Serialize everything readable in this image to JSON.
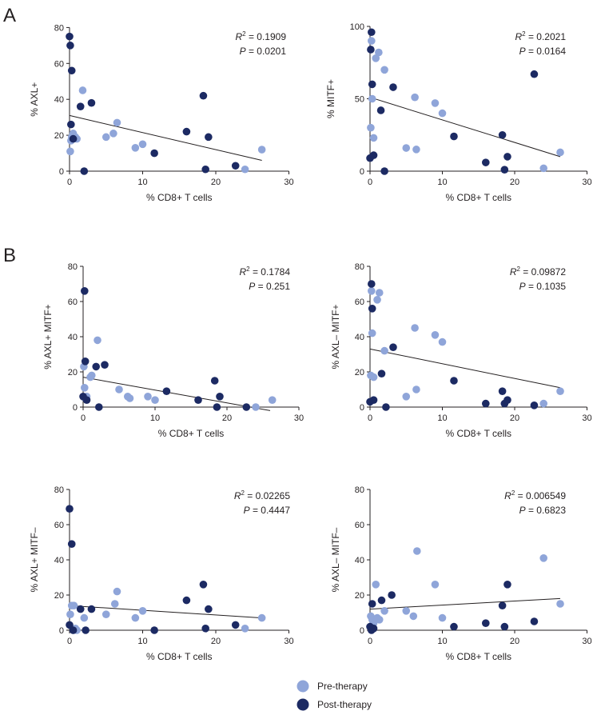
{
  "figure": {
    "panel_labels": [
      "A",
      "B"
    ],
    "colors": {
      "pre": "#8fa5d9",
      "post": "#1c2a63",
      "line": "#231f20"
    },
    "legend": [
      {
        "name": "Pre-therapy",
        "color": "#8fa5d9"
      },
      {
        "name": "Post-therapy",
        "color": "#1c2a63"
      }
    ]
  },
  "chart_data": [
    {
      "type": "scatter",
      "panel": "A",
      "xlabel": "% CD8+ T cells",
      "ylabel": "% AXL+",
      "xlim": [
        0,
        30
      ],
      "ylim": [
        0,
        80
      ],
      "xticks": [
        0,
        10,
        20,
        30
      ],
      "yticks": [
        0,
        20,
        40,
        60,
        80
      ],
      "r2_label": "R",
      "r2_sup": "2",
      "r2_value": " = 0.1909",
      "p_label": "P",
      "p_value": " = 0.0201",
      "fit": {
        "x": [
          0,
          26.3
        ],
        "y": [
          31,
          6
        ]
      },
      "series": [
        {
          "name": "Pre-therapy",
          "points": [
            [
              0.1,
              11
            ],
            [
              0.2,
              17
            ],
            [
              0.3,
              19
            ],
            [
              0.5,
              21
            ],
            [
              0.8,
              19
            ],
            [
              1,
              18
            ],
            [
              1.8,
              45
            ],
            [
              5,
              19
            ],
            [
              6,
              21
            ],
            [
              6.5,
              27
            ],
            [
              9,
              13
            ],
            [
              10,
              15
            ],
            [
              24,
              1
            ],
            [
              26.3,
              12
            ]
          ]
        },
        {
          "name": "Post-therapy",
          "points": [
            [
              0,
              75
            ],
            [
              0.1,
              70
            ],
            [
              0.3,
              56
            ],
            [
              0.2,
              26
            ],
            [
              0.5,
              18
            ],
            [
              1.5,
              36
            ],
            [
              3,
              38
            ],
            [
              2,
              0
            ],
            [
              11.6,
              10
            ],
            [
              16,
              22
            ],
            [
              18.3,
              42
            ],
            [
              18.6,
              1
            ],
            [
              19,
              19
            ],
            [
              22.7,
              3
            ]
          ]
        }
      ]
    },
    {
      "type": "scatter",
      "panel": "A",
      "xlabel": "% CD8+ T cells",
      "ylabel": "% MITF+",
      "xlim": [
        0,
        30
      ],
      "ylim": [
        0,
        100
      ],
      "xticks": [
        0,
        10,
        20,
        30
      ],
      "yticks": [
        0,
        50,
        100
      ],
      "r2_label": "R",
      "r2_sup": "2",
      "r2_value": " = 0.2021",
      "p_label": "P",
      "p_value": " = 0.0164",
      "fit": {
        "x": [
          0,
          26.3
        ],
        "y": [
          51,
          10
        ]
      },
      "series": [
        {
          "name": "Pre-therapy",
          "points": [
            [
              0.1,
              30
            ],
            [
              0.3,
              50
            ],
            [
              0.5,
              23
            ],
            [
              0.2,
              90
            ],
            [
              0.8,
              78
            ],
            [
              1.2,
              82
            ],
            [
              2,
              70
            ],
            [
              5,
              16
            ],
            [
              6.2,
              51
            ],
            [
              6.4,
              15
            ],
            [
              9,
              47
            ],
            [
              10,
              40
            ],
            [
              24,
              2
            ],
            [
              26.3,
              13
            ]
          ]
        },
        {
          "name": "Post-therapy",
          "points": [
            [
              0.2,
              96
            ],
            [
              0.1,
              84
            ],
            [
              0.3,
              60
            ],
            [
              0,
              9
            ],
            [
              0.5,
              11
            ],
            [
              1.5,
              42
            ],
            [
              3.2,
              58
            ],
            [
              2,
              0
            ],
            [
              11.6,
              24
            ],
            [
              16,
              6
            ],
            [
              18.3,
              25
            ],
            [
              18.6,
              1
            ],
            [
              19,
              10
            ],
            [
              22.7,
              67
            ]
          ]
        }
      ]
    },
    {
      "type": "scatter",
      "panel": "B",
      "xlabel": "% CD8+ T cells",
      "ylabel": "% AXL+ MITF+",
      "xlim": [
        0,
        30
      ],
      "ylim": [
        0,
        80
      ],
      "xticks": [
        0,
        10,
        20,
        30
      ],
      "yticks": [
        0,
        20,
        40,
        60,
        80
      ],
      "r2_label": "R",
      "r2_sup": "2",
      "r2_value": " = 0.1784",
      "p_label": "P",
      "p_value": " = 0.251",
      "fit": {
        "x": [
          0,
          26
        ],
        "y": [
          17,
          -2
        ]
      },
      "series": [
        {
          "name": "Pre-therapy",
          "points": [
            [
              0.1,
              23
            ],
            [
              0.2,
              11
            ],
            [
              0.3,
              5
            ],
            [
              0.5,
              6
            ],
            [
              1,
              17
            ],
            [
              1.2,
              18
            ],
            [
              2,
              38
            ],
            [
              5,
              10
            ],
            [
              6.2,
              6
            ],
            [
              6.5,
              5
            ],
            [
              9,
              6
            ],
            [
              10,
              4
            ],
            [
              24,
              0
            ],
            [
              26.3,
              4
            ]
          ]
        },
        {
          "name": "Post-therapy",
          "points": [
            [
              0.2,
              66
            ],
            [
              0.3,
              26
            ],
            [
              0,
              6
            ],
            [
              0.5,
              4
            ],
            [
              1.8,
              23
            ],
            [
              3,
              24
            ],
            [
              2.2,
              0
            ],
            [
              11.6,
              9
            ],
            [
              16,
              4
            ],
            [
              18.3,
              15
            ],
            [
              18.6,
              0
            ],
            [
              19,
              6
            ],
            [
              22.7,
              0
            ]
          ]
        }
      ]
    },
    {
      "type": "scatter",
      "panel": "B",
      "xlabel": "% CD8+ T cells",
      "ylabel": "% AXL– MITF+",
      "xlim": [
        0,
        30
      ],
      "ylim": [
        0,
        80
      ],
      "xticks": [
        0,
        10,
        20,
        30
      ],
      "yticks": [
        0,
        20,
        40,
        60,
        80
      ],
      "r2_label": "R",
      "r2_sup": "2",
      "r2_value": " = 0.09872",
      "p_label": "P",
      "p_value": " = 0.1035",
      "fit": {
        "x": [
          0,
          26.3
        ],
        "y": [
          33,
          11
        ]
      },
      "series": [
        {
          "name": "Pre-therapy",
          "points": [
            [
              0.2,
              66
            ],
            [
              0.3,
              42
            ],
            [
              0.1,
              18
            ],
            [
              0.5,
              17
            ],
            [
              1,
              61
            ],
            [
              1.3,
              65
            ],
            [
              2,
              32
            ],
            [
              5,
              6
            ],
            [
              6.2,
              45
            ],
            [
              6.4,
              10
            ],
            [
              9,
              41
            ],
            [
              10,
              37
            ],
            [
              24,
              2
            ],
            [
              26.3,
              9
            ]
          ]
        },
        {
          "name": "Post-therapy",
          "points": [
            [
              0.2,
              70
            ],
            [
              0.3,
              56
            ],
            [
              0,
              3
            ],
            [
              0.5,
              4
            ],
            [
              1.6,
              19
            ],
            [
              3.2,
              34
            ],
            [
              2.2,
              0
            ],
            [
              11.6,
              15
            ],
            [
              16,
              2
            ],
            [
              18.3,
              9
            ],
            [
              18.6,
              2
            ],
            [
              19,
              4
            ],
            [
              22.7,
              1
            ]
          ]
        }
      ]
    },
    {
      "type": "scatter",
      "panel": "B",
      "xlabel": "% CD8+ T cells",
      "ylabel": "% AXL+ MITF–",
      "xlim": [
        0,
        30
      ],
      "ylim": [
        0,
        80
      ],
      "xticks": [
        0,
        10,
        20,
        30
      ],
      "yticks": [
        0,
        20,
        40,
        60,
        80
      ],
      "r2_label": "R",
      "r2_sup": "2",
      "r2_value": " = 0.02265",
      "p_label": "P",
      "p_value": " = 0.4447",
      "fit": {
        "x": [
          0,
          26.3
        ],
        "y": [
          14,
          7
        ]
      },
      "series": [
        {
          "name": "Pre-therapy",
          "points": [
            [
              0.3,
              14
            ],
            [
              0.6,
              14
            ],
            [
              0.1,
              9
            ],
            [
              0.5,
              0
            ],
            [
              0.8,
              1
            ],
            [
              1,
              0
            ],
            [
              2,
              7
            ],
            [
              5,
              9
            ],
            [
              6.2,
              15
            ],
            [
              6.5,
              22
            ],
            [
              9,
              7
            ],
            [
              10,
              11
            ],
            [
              24,
              1
            ],
            [
              26.3,
              7
            ]
          ]
        },
        {
          "name": "Post-therapy",
          "points": [
            [
              0,
              69
            ],
            [
              0.3,
              49
            ],
            [
              0,
              3
            ],
            [
              0.5,
              0
            ],
            [
              1.5,
              12
            ],
            [
              3,
              12
            ],
            [
              2.2,
              0
            ],
            [
              11.6,
              0
            ],
            [
              16,
              17
            ],
            [
              18.3,
              26
            ],
            [
              18.6,
              1
            ],
            [
              19,
              12
            ],
            [
              22.7,
              3
            ]
          ]
        }
      ]
    },
    {
      "type": "scatter",
      "panel": "B",
      "xlabel": "% CD8+ T cells",
      "ylabel": "% AXL– MITF–",
      "xlim": [
        0,
        30
      ],
      "ylim": [
        0,
        80
      ],
      "xticks": [
        0,
        10,
        20,
        30
      ],
      "yticks": [
        0,
        20,
        40,
        60,
        80
      ],
      "r2_label": "R",
      "r2_sup": "2",
      "r2_value": " = 0.006549",
      "p_label": "P",
      "p_value": " = 0.6823",
      "fit": {
        "x": [
          0,
          26.3
        ],
        "y": [
          12,
          18
        ]
      },
      "series": [
        {
          "name": "Pre-therapy",
          "points": [
            [
              0.1,
              8
            ],
            [
              0.3,
              6
            ],
            [
              0.5,
              4
            ],
            [
              0.8,
              26
            ],
            [
              1,
              7
            ],
            [
              1.3,
              6
            ],
            [
              2,
              11
            ],
            [
              5,
              11
            ],
            [
              6,
              8
            ],
            [
              6.5,
              45
            ],
            [
              9,
              26
            ],
            [
              10,
              7
            ],
            [
              24,
              41
            ],
            [
              26.3,
              15
            ]
          ]
        },
        {
          "name": "Post-therapy",
          "points": [
            [
              0.3,
              15
            ],
            [
              0,
              2
            ],
            [
              0.5,
              1
            ],
            [
              0.2,
              0
            ],
            [
              1.6,
              17
            ],
            [
              3,
              20
            ],
            [
              11.6,
              2
            ],
            [
              16,
              4
            ],
            [
              18.3,
              14
            ],
            [
              18.6,
              2
            ],
            [
              19,
              26
            ],
            [
              22.7,
              5
            ]
          ]
        }
      ]
    }
  ]
}
